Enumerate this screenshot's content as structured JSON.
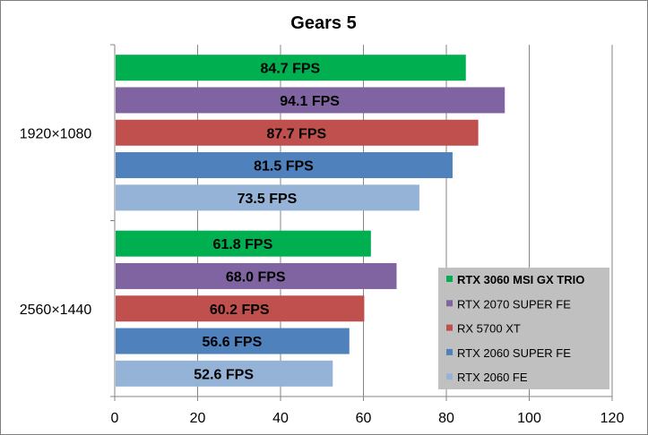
{
  "chart_data": {
    "type": "bar",
    "orientation": "horizontal",
    "title": "Gears 5",
    "categories": [
      "1920×1080",
      "2560×1440"
    ],
    "series": [
      {
        "name": "RTX 3060 MSI GX TRIO",
        "color": "#00b050",
        "values": [
          84.7,
          61.8
        ],
        "labels": [
          "84.7 FPS",
          "61.8 FPS"
        ]
      },
      {
        "name": "RTX 2070 SUPER FE",
        "color": "#8064a2",
        "values": [
          94.1,
          68.0
        ],
        "labels": [
          "94.1 FPS",
          "68.0 FPS"
        ]
      },
      {
        "name": "RX 5700 XT",
        "color": "#c0504d",
        "values": [
          87.7,
          60.2
        ],
        "labels": [
          "87.7 FPS",
          "60.2 FPS"
        ]
      },
      {
        "name": "RTX 2060 SUPER FE",
        "color": "#4f81bd",
        "values": [
          81.5,
          56.6
        ],
        "labels": [
          "81.5 FPS",
          "56.6 FPS"
        ]
      },
      {
        "name": "RTX 2060 FE",
        "color": "#95b3d7",
        "values": [
          73.5,
          52.6
        ],
        "labels": [
          "73.5 FPS",
          "52.6 FPS"
        ]
      }
    ],
    "xlim": [
      0,
      120
    ],
    "xticks": [
      "0",
      "20",
      "40",
      "60",
      "80",
      "100",
      "120"
    ],
    "grid": true,
    "legend_position": "bottom-right",
    "legend_background": "#c0c0c0"
  }
}
